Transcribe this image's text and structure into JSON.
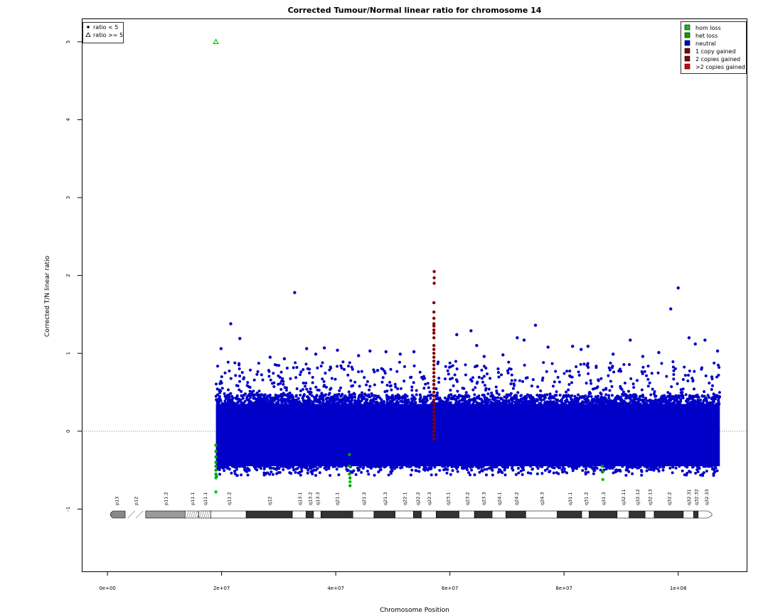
{
  "chart_data": {
    "type": "scatter",
    "title": "Corrected Tumour/Normal linear ratio for chromosome  14",
    "xlabel": "Chromosome Position",
    "ylabel": "Corrected T/N linear ratio",
    "xlim": [
      -4500000,
      112000000
    ],
    "ylim": [
      -1.8,
      5.3
    ],
    "x_ticks": [
      0,
      20000000,
      40000000,
      60000000,
      80000000,
      100000000
    ],
    "x_tick_labels": [
      "0e+00",
      "2e+07",
      "4e+07",
      "6e+07",
      "8e+07",
      "1e+08"
    ],
    "y_ticks": [
      -1,
      0,
      1,
      2,
      3,
      4,
      5
    ],
    "y_tick_labels": [
      "-1",
      "0",
      "1",
      "2",
      "3",
      "4",
      "5"
    ],
    "reference_line": {
      "y": 0,
      "style": "dotted",
      "color": "#808080"
    },
    "data_range_x": [
      19000000,
      107300000
    ],
    "bulk_band": {
      "low": -0.45,
      "high": 0.35,
      "color": "#0000c8"
    },
    "series": [
      {
        "name": "hom loss",
        "color": "#00c800",
        "points": [
          [
            19000000,
            -0.6
          ],
          [
            19000000,
            -0.78
          ],
          [
            42500000,
            -0.65
          ],
          [
            86800000,
            -0.62
          ]
        ]
      },
      {
        "name": "het loss",
        "color": "#00a000",
        "points": [
          [
            19000000,
            -0.18
          ],
          [
            19000000,
            -0.26
          ],
          [
            19000000,
            -0.33
          ],
          [
            19000000,
            -0.4
          ],
          [
            19000000,
            -0.45
          ],
          [
            19000000,
            -0.5
          ],
          [
            19000000,
            -0.55
          ],
          [
            19100000,
            -0.58
          ],
          [
            42400000,
            -0.3
          ],
          [
            42400000,
            -0.45
          ],
          [
            42400000,
            -0.55
          ],
          [
            42500000,
            -0.6
          ],
          [
            42500000,
            -0.7
          ],
          [
            86700000,
            -0.45
          ],
          [
            86800000,
            -0.52
          ]
        ]
      },
      {
        "name": "neutral",
        "color": "#0000c8",
        "points": [
          [
            32800000,
            1.78
          ],
          [
            100000000,
            1.84
          ],
          [
            98700000,
            1.57
          ],
          [
            21600000,
            1.38
          ],
          [
            23200000,
            1.19
          ],
          [
            75000000,
            1.36
          ],
          [
            63700000,
            1.29
          ],
          [
            61200000,
            1.24
          ],
          [
            64700000,
            1.1
          ],
          [
            71800000,
            1.2
          ],
          [
            73000000,
            1.17
          ],
          [
            81500000,
            1.09
          ],
          [
            84200000,
            1.09
          ],
          [
            91600000,
            1.17
          ],
          [
            101900000,
            1.2
          ],
          [
            104700000,
            1.17
          ],
          [
            34900000,
            1.06
          ],
          [
            38000000,
            1.07
          ],
          [
            40300000,
            1.04
          ],
          [
            46000000,
            1.03
          ],
          [
            48800000,
            1.02
          ],
          [
            53700000,
            1.02
          ],
          [
            77200000,
            1.08
          ],
          [
            88600000,
            0.99
          ],
          [
            96600000,
            1.01
          ],
          [
            103000000,
            1.12
          ],
          [
            106900000,
            1.03
          ],
          [
            19900000,
            1.06
          ],
          [
            28500000,
            0.95
          ],
          [
            44000000,
            0.97
          ],
          [
            51300000,
            0.99
          ],
          [
            66000000,
            0.96
          ],
          [
            69300000,
            0.98
          ],
          [
            93800000,
            0.96
          ],
          [
            83000000,
            1.05
          ],
          [
            31000000,
            0.93
          ],
          [
            36500000,
            0.99
          ]
        ]
      },
      {
        "name": "1 copy gained",
        "color": "#800000",
        "points": [
          [
            57200000,
            1.65
          ],
          [
            57200000,
            1.53
          ],
          [
            57200000,
            1.45
          ],
          [
            57200000,
            1.38
          ],
          [
            57200000,
            1.35
          ],
          [
            57200000,
            1.3
          ],
          [
            57200000,
            1.26
          ],
          [
            57200000,
            1.2
          ],
          [
            57200000,
            1.1
          ],
          [
            57200000,
            1.05
          ],
          [
            57200000,
            1.0
          ],
          [
            57200000,
            0.95
          ],
          [
            57200000,
            0.9
          ],
          [
            57200000,
            0.85
          ],
          [
            57200000,
            0.8
          ],
          [
            57200000,
            0.75
          ],
          [
            57200000,
            0.7
          ],
          [
            57200000,
            0.65
          ],
          [
            57200000,
            0.6
          ],
          [
            57200000,
            0.55
          ],
          [
            57200000,
            0.5
          ],
          [
            57200000,
            0.45
          ],
          [
            57200000,
            0.4
          ],
          [
            57200000,
            0.35
          ],
          [
            57200000,
            0.3
          ],
          [
            57200000,
            0.25
          ],
          [
            57200000,
            0.2
          ],
          [
            57200000,
            0.15
          ],
          [
            57200000,
            0.1
          ],
          [
            57200000,
            0.05
          ],
          [
            57200000,
            0.0
          ],
          [
            57200000,
            -0.05
          ],
          [
            57200000,
            -0.1
          ]
        ]
      },
      {
        "name": "2 copies gained",
        "color": "#8b0000",
        "points": [
          [
            57250000,
            2.05
          ],
          [
            57250000,
            1.97
          ],
          [
            57250000,
            1.9
          ]
        ]
      },
      {
        "name": ">2 copies gained",
        "color": "#dc0000",
        "points": []
      }
    ],
    "outliers_ge5": [
      {
        "x": 19000000,
        "y": 5.0,
        "color": "#00c800",
        "shape": "triangle"
      }
    ],
    "legend_left": {
      "placement": "top-left",
      "items": [
        {
          "label": "ratio < 5",
          "symbol": "dot"
        },
        {
          "label": "ratio >= 5",
          "symbol": "triangle"
        }
      ]
    },
    "legend_right": {
      "placement": "top-right",
      "items": [
        {
          "label": "hom loss",
          "color": "#00c800"
        },
        {
          "label": "het loss",
          "color": "#00a000"
        },
        {
          "label": "neutral",
          "color": "#0000c8"
        },
        {
          "label": "1 copy gained",
          "color": "#800000"
        },
        {
          "label": "2 copies gained",
          "color": "#8b0000"
        },
        {
          "label": ">2 copies gained",
          "color": "#dc0000"
        }
      ]
    },
    "ideogram": {
      "y": -1.07,
      "bands": [
        {
          "name": "p13",
          "start": 0,
          "end": 3100000,
          "stain": "gpos75"
        },
        {
          "name": "p12",
          "start": 3100000,
          "end": 6700000,
          "stain": "stalk"
        },
        {
          "name": "p11.2",
          "start": 6700000,
          "end": 13600000,
          "stain": "gpos50"
        },
        {
          "name": "p11.1",
          "start": 13600000,
          "end": 16000000,
          "stain": "acen"
        },
        {
          "name": "q11.1",
          "start": 16000000,
          "end": 18100000,
          "stain": "gvar"
        },
        {
          "name": "q11.2",
          "start": 18100000,
          "end": 24300000,
          "stain": "gneg"
        },
        {
          "name": "q12",
          "start": 24300000,
          "end": 32400000,
          "stain": "gpos100"
        },
        {
          "name": "q13.1",
          "start": 32400000,
          "end": 34800000,
          "stain": "gneg"
        },
        {
          "name": "q13.2",
          "start": 34800000,
          "end": 36100000,
          "stain": "gpos100"
        },
        {
          "name": "q13.3",
          "start": 36100000,
          "end": 37400000,
          "stain": "gneg"
        },
        {
          "name": "q21.1",
          "start": 37400000,
          "end": 43000000,
          "stain": "gpos100"
        },
        {
          "name": "q21.2",
          "start": 43000000,
          "end": 46700000,
          "stain": "gneg"
        },
        {
          "name": "q21.3",
          "start": 46700000,
          "end": 50400000,
          "stain": "gpos100"
        },
        {
          "name": "q22.1",
          "start": 50400000,
          "end": 53600000,
          "stain": "gneg"
        },
        {
          "name": "q22.2",
          "start": 53600000,
          "end": 55000000,
          "stain": "gpos100"
        },
        {
          "name": "q22.3",
          "start": 55000000,
          "end": 57600000,
          "stain": "gneg"
        },
        {
          "name": "q23.1",
          "start": 57600000,
          "end": 61600000,
          "stain": "gpos100"
        },
        {
          "name": "q23.2",
          "start": 61600000,
          "end": 64300000,
          "stain": "gneg"
        },
        {
          "name": "q23.3",
          "start": 64300000,
          "end": 67400000,
          "stain": "gpos100"
        },
        {
          "name": "q24.1",
          "start": 67400000,
          "end": 69800000,
          "stain": "gneg"
        },
        {
          "name": "q24.2",
          "start": 69800000,
          "end": 73300000,
          "stain": "gpos100"
        },
        {
          "name": "q24.3",
          "start": 73300000,
          "end": 78800000,
          "stain": "gneg"
        },
        {
          "name": "q31.1",
          "start": 78800000,
          "end": 83100000,
          "stain": "gpos100"
        },
        {
          "name": "q31.2",
          "start": 83100000,
          "end": 84400000,
          "stain": "gneg"
        },
        {
          "name": "q31.3",
          "start": 84400000,
          "end": 89300000,
          "stain": "gpos100"
        },
        {
          "name": "q32.11",
          "start": 89300000,
          "end": 91400000,
          "stain": "gneg"
        },
        {
          "name": "q32.12",
          "start": 91400000,
          "end": 94200000,
          "stain": "gpos100"
        },
        {
          "name": "q32.13",
          "start": 94200000,
          "end": 95800000,
          "stain": "gneg"
        },
        {
          "name": "q32.2",
          "start": 95800000,
          "end": 100900000,
          "stain": "gpos100"
        },
        {
          "name": "q32.31",
          "start": 100900000,
          "end": 102700000,
          "stain": "gneg"
        },
        {
          "name": "q32.32",
          "start": 102700000,
          "end": 103500000,
          "stain": "gpos100"
        },
        {
          "name": "q32.33",
          "start": 103500000,
          "end": 106300000,
          "stain": "gneg"
        }
      ]
    }
  }
}
